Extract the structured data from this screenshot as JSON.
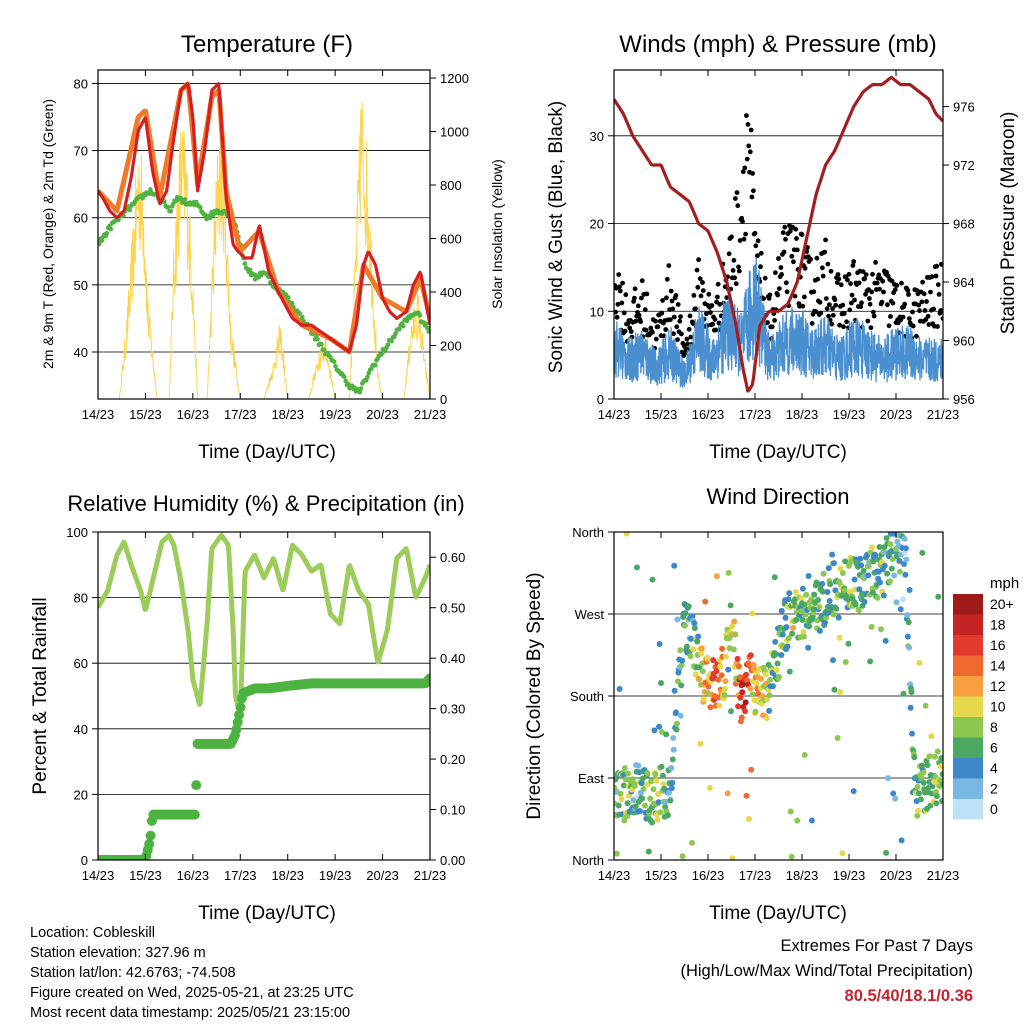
{
  "station": {
    "location": "Location: Cobleskill",
    "elevation": "Station elevation: 327.96 m",
    "latlon": "Station lat/lon: 42.6763; -74.508",
    "created": "Figure created on Wed, 2025-05-21, at 23:25 UTC",
    "latest": "Most recent data timestamp: 2025/05/21 23:15:00"
  },
  "extremes": {
    "title": "Extremes For Past 7 Days",
    "subtitle": "(High/Low/Max Wind/Total Precipitation)",
    "values": "80.5/40/18.1/0.36",
    "color": "#c8232c"
  },
  "chart_data": [
    {
      "type": "line",
      "title": "Temperature (F)",
      "xlabel": "Time (Day/UTC)",
      "ylabel": "2m & 9m T (Red, Orange) & 2m Td (Green)",
      "y2label": "Solar Insolation (Yellow)",
      "x_ticks": [
        "14/23",
        "15/23",
        "16/23",
        "17/23",
        "18/23",
        "19/23",
        "20/23",
        "21/23"
      ],
      "xlim": [
        0,
        7
      ],
      "ylim": [
        33,
        82
      ],
      "yticks": [
        40,
        50,
        60,
        70,
        80
      ],
      "y2lim": [
        0,
        1230
      ],
      "y2ticks": [
        0,
        200,
        400,
        600,
        800,
        1000,
        1200
      ],
      "grid": true,
      "x_unit": "days since 14/23",
      "series": [
        {
          "name": "2m T",
          "color": "#d42020",
          "axis": "left",
          "x": [
            0,
            0.1,
            0.25,
            0.4,
            0.55,
            0.7,
            0.85,
            1.0,
            1.15,
            1.3,
            1.45,
            1.6,
            1.75,
            1.9,
            2.0,
            2.1,
            2.25,
            2.4,
            2.55,
            2.7,
            2.85,
            2.95,
            3.1,
            3.25,
            3.4,
            3.6,
            3.8,
            3.95,
            4.1,
            4.3,
            4.5,
            4.7,
            4.9,
            5.1,
            5.3,
            5.45,
            5.6,
            5.7,
            5.85,
            6.0,
            6.15,
            6.3,
            6.5,
            6.65,
            6.8,
            6.9,
            7.0
          ],
          "values": [
            64,
            63,
            61,
            60,
            61,
            66,
            73,
            75,
            67,
            62,
            64,
            72,
            79,
            80,
            75,
            64,
            70,
            79,
            80,
            63,
            56,
            55,
            54,
            54,
            59,
            52,
            49,
            47,
            45,
            44,
            44,
            43,
            42,
            41,
            40,
            44,
            53,
            55,
            53,
            48,
            46,
            45,
            46,
            50,
            52,
            48,
            44
          ]
        },
        {
          "name": "9m T",
          "color": "#f07a2a",
          "axis": "left",
          "x": [
            0,
            0.4,
            0.85,
            1.0,
            1.3,
            1.75,
            1.9,
            2.1,
            2.4,
            2.55,
            2.7,
            3.0,
            3.4,
            3.8,
            4.3,
            4.9,
            5.3,
            5.6,
            6.0,
            6.5,
            6.8,
            7.0
          ],
          "values": [
            64,
            61,
            75,
            76,
            63,
            79,
            80,
            65,
            78,
            79,
            64,
            55,
            58,
            49,
            44,
            42,
            40,
            53,
            48,
            46,
            51,
            45
          ]
        },
        {
          "name": "2m Td",
          "color": "#4fb342",
          "axis": "left",
          "x": [
            0,
            0.3,
            0.6,
            0.9,
            1.1,
            1.3,
            1.5,
            1.7,
            1.9,
            2.1,
            2.3,
            2.5,
            2.7,
            2.9,
            3.1,
            3.3,
            3.5,
            3.7,
            4.0,
            4.3,
            4.6,
            4.9,
            5.1,
            5.3,
            5.5,
            5.8,
            6.1,
            6.4,
            6.7,
            7.0
          ],
          "values": [
            56,
            59,
            61,
            63,
            64,
            63,
            61,
            63,
            62,
            62,
            60,
            61,
            61,
            59,
            53,
            51,
            52,
            50,
            48,
            45,
            42,
            39,
            37,
            35,
            34,
            38,
            41,
            44,
            46,
            43
          ]
        },
        {
          "name": "Solar Insolation",
          "color": "#fcd34d",
          "axis": "right",
          "x": [
            0,
            0.25,
            0.45,
            0.6,
            0.75,
            0.85,
            0.95,
            1.05,
            1.25,
            1.5,
            1.6,
            1.75,
            1.85,
            2.0,
            2.1,
            2.3,
            2.45,
            2.55,
            2.65,
            2.8,
            3.0,
            3.25,
            3.5,
            3.7,
            3.85,
            4.0,
            4.25,
            4.45,
            4.6,
            4.8,
            5.0,
            5.3,
            5.45,
            5.55,
            5.7,
            5.9,
            6.0,
            6.25,
            6.45,
            6.6,
            6.75,
            6.9,
            7.0
          ],
          "values": [
            0,
            0,
            0,
            300,
            700,
            1010,
            900,
            400,
            0,
            0,
            600,
            1080,
            1010,
            500,
            0,
            0,
            700,
            1070,
            1000,
            300,
            0,
            0,
            0,
            150,
            300,
            0,
            0,
            0,
            150,
            250,
            0,
            0,
            700,
            1230,
            900,
            100,
            0,
            0,
            0,
            300,
            420,
            150,
            0
          ]
        }
      ]
    },
    {
      "type": "scatter",
      "title": "Winds (mph) & Pressure (mb)",
      "xlabel": "Time (Day/UTC)",
      "ylabel": "Sonic Wind & Gust (Blue, Black)",
      "y2label": "Station Pressure (Maroon)",
      "x_ticks": [
        "14/23",
        "15/23",
        "16/23",
        "17/23",
        "18/23",
        "19/23",
        "20/23",
        "21/23"
      ],
      "xlim": [
        0,
        7
      ],
      "ylim": [
        0,
        37.5
      ],
      "yticks": [
        0,
        10,
        20,
        30
      ],
      "y2lim": [
        956,
        978.5
      ],
      "y2ticks": [
        956,
        960,
        964,
        968,
        972,
        976
      ],
      "grid": true,
      "x_unit": "days since 14/23",
      "series": [
        {
          "name": "Sonic Wind",
          "color": "#4a90d0",
          "axis": "left",
          "x": [
            0,
            0.3,
            0.6,
            0.9,
            1.2,
            1.5,
            1.8,
            2.1,
            2.4,
            2.7,
            3.0,
            3.3,
            3.6,
            3.9,
            4.2,
            4.5,
            4.8,
            5.1,
            5.4,
            5.7,
            6.0,
            6.3,
            6.6,
            7.0
          ],
          "values": [
            7,
            5,
            6,
            4,
            6,
            3,
            8,
            5,
            9,
            7,
            13,
            5,
            7,
            8,
            6,
            7,
            5,
            7,
            6,
            5,
            6,
            6,
            5,
            5
          ]
        },
        {
          "name": "Gust",
          "color": "#000000",
          "axis": "left",
          "x": [
            0,
            0.3,
            0.6,
            0.9,
            1.2,
            1.5,
            1.8,
            2.1,
            2.4,
            2.7,
            2.85,
            3.0,
            3.3,
            3.6,
            3.9,
            4.2,
            4.5,
            4.8,
            5.1,
            5.4,
            5.7,
            6.0,
            6.3,
            6.6,
            7.0
          ],
          "values": [
            16,
            10,
            12,
            8,
            14,
            6,
            14,
            10,
            15,
            24,
            35,
            18,
            10,
            17,
            18,
            14,
            16,
            12,
            14,
            13,
            14,
            12,
            11,
            12,
            14
          ]
        },
        {
          "name": "Station Pressure",
          "color": "#a31f1f",
          "axis": "right",
          "x": [
            0,
            0.2,
            0.4,
            0.6,
            0.8,
            1.0,
            1.2,
            1.4,
            1.6,
            1.8,
            2.0,
            2.2,
            2.4,
            2.6,
            2.75,
            2.85,
            2.95,
            3.1,
            3.3,
            3.5,
            3.7,
            3.9,
            4.1,
            4.3,
            4.5,
            4.7,
            4.9,
            5.1,
            5.3,
            5.5,
            5.7,
            5.9,
            6.1,
            6.3,
            6.5,
            6.7,
            6.85,
            7.0
          ],
          "values": [
            976.5,
            975.5,
            974,
            973,
            972,
            972,
            970.5,
            970,
            969.5,
            968,
            967.5,
            966,
            964,
            961,
            958,
            956.5,
            957,
            961,
            962,
            962,
            962.5,
            964,
            967,
            970,
            972,
            973,
            974.5,
            976,
            977,
            977.5,
            977.5,
            978,
            977.5,
            977.5,
            977,
            976.5,
            975.5,
            975
          ]
        }
      ]
    },
    {
      "type": "line",
      "title": "Relative Humidity (%) & Precipitation (in)",
      "xlabel": "Time (Day/UTC)",
      "ylabel": "Percent & Total Rainfall",
      "x_ticks": [
        "14/23",
        "15/23",
        "16/23",
        "17/23",
        "18/23",
        "19/23",
        "20/23",
        "21/23"
      ],
      "xlim": [
        0,
        7
      ],
      "ylim": [
        0,
        100
      ],
      "yticks": [
        0,
        20,
        40,
        60,
        80,
        100
      ],
      "y2lim": [
        0,
        0.65
      ],
      "y2ticks": [
        "0.00",
        "0.10",
        "0.20",
        "0.30",
        "0.40",
        "0.50",
        "0.60"
      ],
      "grid": true,
      "x_unit": "days since 14/23",
      "series": [
        {
          "name": "RH",
          "color": "#9ccd5a",
          "axis": "left",
          "x": [
            0,
            0.2,
            0.4,
            0.55,
            0.7,
            0.9,
            1.0,
            1.15,
            1.35,
            1.5,
            1.6,
            1.75,
            1.9,
            2.0,
            2.15,
            2.3,
            2.4,
            2.6,
            2.75,
            2.85,
            2.9,
            3.0,
            3.1,
            3.3,
            3.5,
            3.7,
            3.9,
            4.1,
            4.3,
            4.5,
            4.7,
            4.9,
            5.1,
            5.3,
            5.5,
            5.7,
            5.9,
            6.1,
            6.3,
            6.5,
            6.7,
            6.9,
            7.0
          ],
          "values": [
            77,
            82,
            93,
            97,
            90,
            82,
            76,
            85,
            97,
            99,
            96,
            85,
            70,
            55,
            47,
            72,
            95,
            99,
            96,
            70,
            50,
            44,
            88,
            93,
            86,
            92,
            82,
            96,
            93,
            88,
            90,
            75,
            72,
            90,
            82,
            78,
            60,
            70,
            92,
            95,
            80,
            86,
            90
          ]
        },
        {
          "name": "Total Rainfall",
          "color": "#4db340",
          "axis": "right",
          "x": [
            0,
            1.0,
            1.1,
            1.15,
            2.0,
            2.05,
            2.1,
            2.7,
            2.8,
            2.9,
            3.0,
            3.05,
            3.3,
            3.6,
            4.0,
            4.5,
            5.0,
            5.5,
            6.0,
            6.5,
            6.9,
            7.0
          ],
          "values": [
            0,
            0,
            0.04,
            0.09,
            0.09,
            0.09,
            0.23,
            0.23,
            0.23,
            0.25,
            0.3,
            0.33,
            0.34,
            0.34,
            0.345,
            0.35,
            0.35,
            0.35,
            0.35,
            0.35,
            0.35,
            0.36
          ]
        }
      ]
    },
    {
      "type": "scatter",
      "title": "Wind Direction",
      "xlabel": "Time (Day/UTC)",
      "ylabel": "Direction (Colored By Speed)",
      "x_ticks": [
        "14/23",
        "15/23",
        "16/23",
        "17/23",
        "18/23",
        "19/23",
        "20/23",
        "21/23"
      ],
      "xlim": [
        0,
        7
      ],
      "ylim": [
        0,
        360
      ],
      "yticks": [
        "North",
        "East",
        "South",
        "West",
        "North"
      ],
      "legend": {
        "title": "mph",
        "position": "right",
        "labels": [
          "20+",
          "18",
          "16",
          "14",
          "12",
          "10",
          "8",
          "6",
          "4",
          "2",
          "0"
        ],
        "colors": [
          "#a01a1a",
          "#c42424",
          "#e23a2e",
          "#f06a30",
          "#f8a040",
          "#e6d84c",
          "#8cc850",
          "#4aa860",
          "#3c88c8",
          "#7ab8e4",
          "#bfe2f6"
        ]
      },
      "grid": true,
      "x_unit": "days since 14/23",
      "series": [
        {
          "name": "Direction",
          "x": [
            0.1,
            0.3,
            0.5,
            0.8,
            1.0,
            1.2,
            1.5,
            1.7,
            1.9,
            2.1,
            2.3,
            2.5,
            2.7,
            2.8,
            2.9,
            3.1,
            3.3,
            3.6,
            3.8,
            4.0,
            4.2,
            4.4,
            4.6,
            4.8,
            5.0,
            5.2,
            5.4,
            5.6,
            5.8,
            6.0,
            6.2,
            6.4,
            6.6,
            6.8,
            7.0
          ],
          "values": [
            75,
            70,
            80,
            70,
            72,
            78,
            260,
            240,
            200,
            195,
            190,
            260,
            170,
            180,
            200,
            180,
            185,
            250,
            280,
            270,
            290,
            280,
            300,
            290,
            310,
            300,
            320,
            310,
            330,
            340,
            330,
            70,
            80,
            90,
            95
          ],
          "speed": [
            6,
            8,
            4,
            8,
            7,
            3,
            5,
            6,
            10,
            14,
            12,
            6,
            16,
            18,
            12,
            10,
            8,
            6,
            8,
            6,
            7,
            5,
            6,
            8,
            7,
            6,
            5,
            7,
            6,
            4,
            3,
            6,
            8,
            7,
            6
          ]
        }
      ]
    }
  ]
}
